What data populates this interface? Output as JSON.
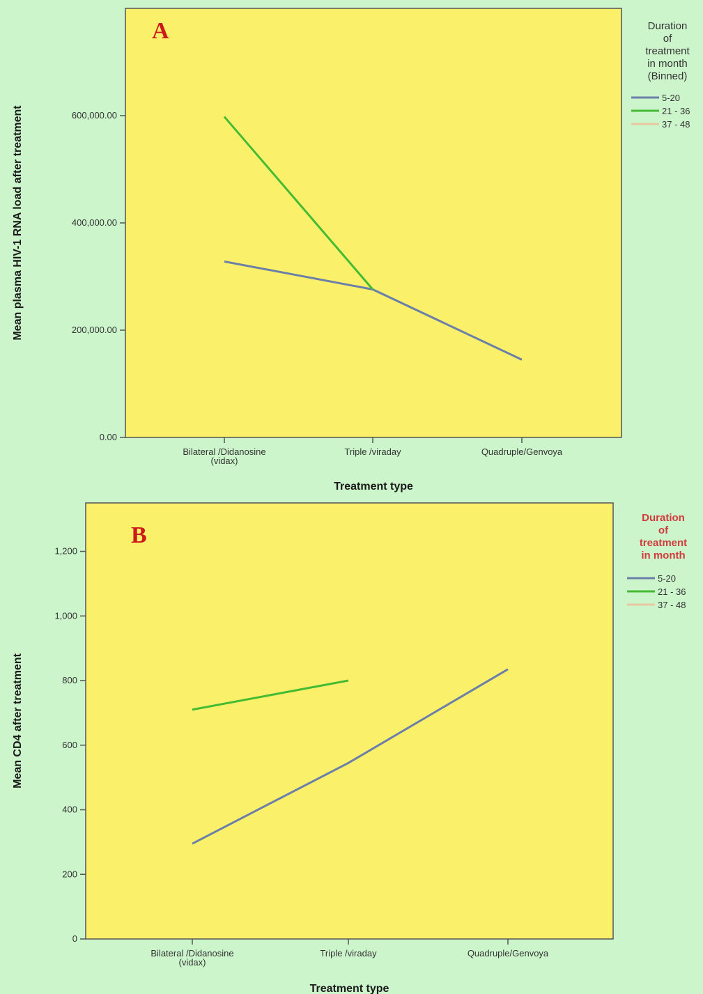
{
  "chart_data": [
    {
      "type": "line",
      "panel_label": "A",
      "categories": [
        "Bilateral /Didanosine (vidax)",
        "Triple /viraday",
        "Quadruple/Genvoya"
      ],
      "category_lines": [
        [
          "Bilateral /Didanosine",
          "(vidax)"
        ],
        [
          "Triple /viraday"
        ],
        [
          "Quadruple/Genvoya"
        ]
      ],
      "xlabel": "Treatment type",
      "ylabel": "Mean plasma HIV-1 RNA load after treatment",
      "ylim": [
        0,
        800000
      ],
      "yticks": [
        0,
        200000,
        400000,
        600000
      ],
      "ytick_labels": [
        "0.00",
        "200,000.00",
        "400,000.00",
        "600,000.00"
      ],
      "grid": false,
      "legend": {
        "title_lines": [
          "Duration",
          "of",
          "treatment",
          "in month",
          "(Binned)"
        ],
        "placement": "right"
      },
      "series": [
        {
          "name": "5-20",
          "color": "#6b7fa8",
          "values": [
            328000,
            276000,
            145000
          ]
        },
        {
          "name": "21 - 36",
          "color": "#44bb33",
          "values": [
            598000,
            276000,
            null
          ]
        },
        {
          "name": "37 - 48",
          "color": "#e8c8a0",
          "values": [
            null,
            null,
            null
          ]
        }
      ]
    },
    {
      "type": "line",
      "panel_label": "B",
      "categories": [
        "Bilateral /Didanosine (vidax)",
        "Triple /viraday",
        "Quadruple/Genvoya"
      ],
      "category_lines": [
        [
          "Bilateral /Didanosine",
          "(vidax)"
        ],
        [
          "Triple /viraday"
        ],
        [
          "Quadruple/Genvoya"
        ]
      ],
      "xlabel": "Treatment type",
      "ylabel": "Mean CD4 after treatment",
      "ylim": [
        0,
        1350
      ],
      "yticks": [
        0,
        200,
        400,
        600,
        800,
        1000,
        1200
      ],
      "ytick_labels": [
        "0",
        "200",
        "400",
        "600",
        "800",
        "1,000",
        "1,200"
      ],
      "grid": false,
      "legend": {
        "title_lines": [
          "Duration",
          "of",
          "treatment",
          "in month"
        ],
        "placement": "right"
      },
      "series": [
        {
          "name": "5-20",
          "color": "#6b7fa8",
          "values": [
            295,
            545,
            835
          ]
        },
        {
          "name": "21 - 36",
          "color": "#44bb33",
          "values": [
            710,
            800,
            null
          ]
        },
        {
          "name": "37 - 48",
          "color": "#e8c8a0",
          "values": [
            null,
            null,
            null
          ]
        }
      ]
    }
  ]
}
